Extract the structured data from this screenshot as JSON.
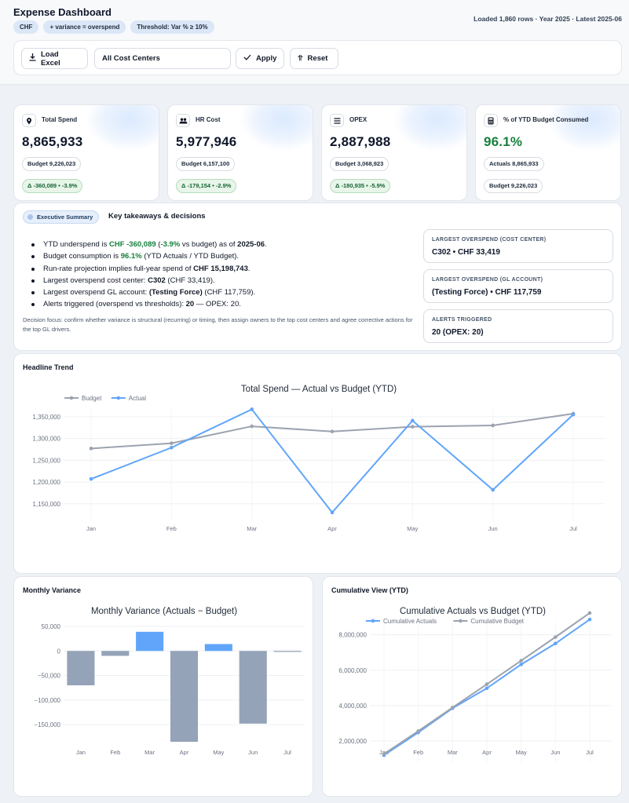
{
  "header": {
    "title": "Expense Dashboard",
    "chips": [
      "CHF",
      "+ variance = overspend",
      "Threshold: Var % ≥ 10%"
    ],
    "status": "Loaded 1,860 rows · Year 2025 · Latest 2025-06"
  },
  "toolbar": {
    "load_label": "Load Excel",
    "select_value": "All Cost Centers",
    "apply_label": "Apply",
    "reset_label": "Reset"
  },
  "kpis": [
    {
      "label": "Total Spend",
      "value": "8,865,933",
      "pill1": "Budget 9,226,023",
      "pill2": "Δ -360,089 • -3.9%",
      "icon": "location-pin-icon"
    },
    {
      "label": "HR Cost",
      "value": "5,977,946",
      "pill1": "Budget 6,157,100",
      "pill2": "Δ -179,154 • -2.9%",
      "icon": "people-icon"
    },
    {
      "label": "OPEX",
      "value": "2,887,988",
      "pill1": "Budget 3,068,923",
      "pill2": "Δ -180,935 • -5.9%",
      "icon": "list-icon"
    },
    {
      "label": "% of YTD Budget Consumed",
      "value": "96.1%",
      "pill1": "Actuals 8,865,933",
      "pill2": "Budget 9,226,023",
      "icon": "calculator-icon"
    }
  ],
  "summary": {
    "badge": "Executive Summary",
    "heading": "Key takeaways & decisions",
    "b1_pre": "YTD underspend is ",
    "b1_val": "CHF -360,089",
    "b1_mid": " (",
    "b1_pct": "-3.9%",
    "b1_post": " vs budget) as of ",
    "b1_date": "2025-06",
    "b1_end": ".",
    "b2_pre": "Budget consumption is ",
    "b2_val": "96.1%",
    "b2_post": " (YTD Actuals / YTD Budget).",
    "b3_pre": "Run-rate projection implies full-year spend of ",
    "b3_val": "CHF 15,198,743",
    "b3_end": ".",
    "b4_pre": "Largest overspend cost center: ",
    "b4_val": "C302",
    "b4_post": " (CHF 33,419).",
    "b5_pre": "Largest overspend GL account: ",
    "b5_val": "(Testing Force)",
    "b5_post": " (CHF 117,759).",
    "b6_pre": "Alerts triggered (overspend vs thresholds): ",
    "b6_val": "20",
    "b6_post": " — OPEX: 20.",
    "focus": "Decision focus: confirm whether variance is structural (recurring) or timing, then assign owners to the top cost centers and agree corrective actions for the top GL drivers.",
    "side": [
      {
        "title": "LARGEST OVERSPEND (COST CENTER)",
        "value": "C302 • CHF 33,419"
      },
      {
        "title": "LARGEST OVERSPEND (GL ACCOUNT)",
        "value": "(Testing Force) • CHF 117,759"
      },
      {
        "title": "ALERTS TRIGGERED",
        "value": "20 (OPEX: 20)"
      }
    ]
  },
  "panels": {
    "trend": "Headline Trend",
    "variance": "Monthly Variance",
    "cumulative": "Cumulative View (YTD)"
  },
  "colors": {
    "actual": "#60a5fa",
    "budget": "#9ca3af",
    "bar_neg": "#94a3b8",
    "bar_pos": "#60a5fa",
    "green": "#15803d"
  },
  "chart_data": [
    {
      "type": "line",
      "title": "Total Spend — Actual vs Budget (YTD)",
      "categories": [
        "Jan",
        "Feb",
        "Mar",
        "Apr",
        "May",
        "Jun",
        "Jul"
      ],
      "series": [
        {
          "name": "Budget",
          "values": [
            1277000,
            1289000,
            1328000,
            1316000,
            1327000,
            1330000,
            1357000
          ]
        },
        {
          "name": "Actual",
          "values": [
            1207000,
            1279000,
            1367000,
            1130000,
            1341000,
            1182000,
            1355000
          ]
        }
      ],
      "yticks": [
        1150000,
        1200000,
        1250000,
        1300000,
        1350000
      ],
      "ytick_labels": [
        "1,150,000",
        "1,200,000",
        "1,250,000",
        "1,300,000",
        "1,350,000"
      ],
      "ylim": [
        1110000,
        1375000
      ],
      "legend": "top-left",
      "grid": true
    },
    {
      "type": "bar",
      "title": "Monthly Variance (Actuals − Budget)",
      "categories": [
        "Jan",
        "Feb",
        "Mar",
        "Apr",
        "May",
        "Jun",
        "Jul"
      ],
      "values": [
        -70000,
        -10000,
        39000,
        -185000,
        14000,
        -148000,
        -2000
      ],
      "yticks": [
        50000,
        0,
        -50000,
        -100000,
        -150000
      ],
      "ytick_labels": [
        "50,000",
        "0",
        "−50,000",
        "−100,000",
        "−150,000"
      ],
      "ylim": [
        -185000,
        58000
      ],
      "grid": true
    },
    {
      "type": "line",
      "title": "Cumulative Actuals vs Budget (YTD)",
      "categories": [
        "Jan",
        "Feb",
        "Mar",
        "Apr",
        "May",
        "Jun",
        "Jul"
      ],
      "series": [
        {
          "name": "Cumulative Actuals",
          "values": [
            1207000,
            2486000,
            3853000,
            4983000,
            6324000,
            7506000,
            8861000
          ]
        },
        {
          "name": "Cumulative Budget",
          "values": [
            1277000,
            2566000,
            3894000,
            5210000,
            6537000,
            7867000,
            9224000
          ]
        }
      ],
      "yticks": [
        2000000,
        4000000,
        6000000,
        8000000
      ],
      "ytick_labels": [
        "2,000,000",
        "4,000,000",
        "6,000,000",
        "8,000,000"
      ],
      "ylim": [
        900000,
        9400000
      ],
      "legend": "top-center",
      "grid": true
    }
  ]
}
